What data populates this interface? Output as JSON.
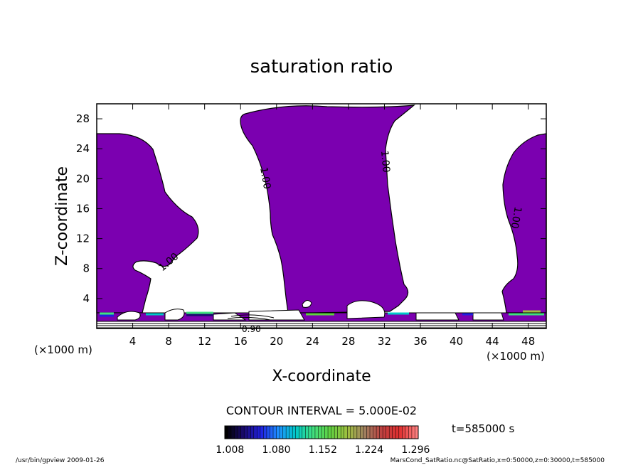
{
  "chart_data": {
    "type": "heatmap",
    "title": "saturation ratio",
    "xlabel": "X-coordinate",
    "ylabel": "Z-coordinate",
    "x_unit": "(×1000 m)",
    "z_unit": "(×1000 m)",
    "xlim": [
      0,
      50
    ],
    "ylim": [
      0,
      30
    ],
    "x_ticks": [
      4,
      8,
      12,
      16,
      20,
      24,
      28,
      32,
      36,
      40,
      44,
      48
    ],
    "y_ticks": [
      4,
      8,
      12,
      16,
      20,
      24,
      28
    ],
    "contour_labels": [
      "1.00",
      "1.00",
      "1.00",
      "1.00",
      "0.90"
    ],
    "contour_interval_text": "CONTOUR INTERVAL = 5.000E-02",
    "time_text": "t=585000  s",
    "colorbar": {
      "ticks": [
        "1.008",
        "1.080",
        "1.152",
        "1.224",
        "1.296"
      ],
      "min": 1.0,
      "max": 1.3,
      "colors": [
        "#000000",
        "#1a0a6e",
        "#2020e0",
        "#1e90ff",
        "#00c8c8",
        "#40e080",
        "#60d040",
        "#a0c040",
        "#a08060",
        "#c04040",
        "#e03030",
        "#ff8080"
      ]
    },
    "fill_color": "#7b00b0",
    "footer_left": "/usr/bin/gpview   2009-01-26",
    "footer_right": "MarsCond_SatRatio.nc@SatRatio,x=0:50000,z=0:30000,t=585000"
  }
}
